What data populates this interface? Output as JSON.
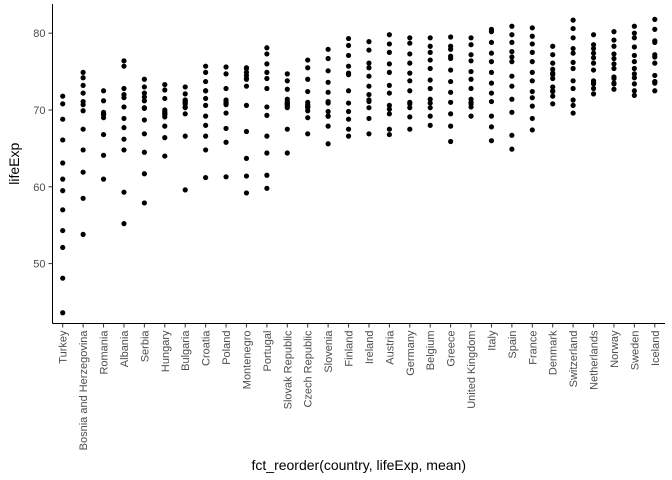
{
  "chart_data": {
    "type": "scatter",
    "title": "",
    "xlabel": "fct_reorder(country, lifeExp, mean)",
    "ylabel": "lifeExp",
    "ylim": [
      42.2,
      83.8
    ],
    "yticks": [
      50,
      60,
      70,
      80
    ],
    "grid": false,
    "point_color": "#000000",
    "categories": [
      "Turkey",
      "Bosnia and Herzegovina",
      "Romania",
      "Albania",
      "Serbia",
      "Hungary",
      "Bulgaria",
      "Croatia",
      "Poland",
      "Montenegro",
      "Portugal",
      "Slovak Republic",
      "Czech Republic",
      "Slovenia",
      "Finland",
      "Ireland",
      "Austria",
      "Germany",
      "Belgium",
      "Greece",
      "United Kingdom",
      "Italy",
      "Spain",
      "France",
      "Denmark",
      "Switzerland",
      "Netherlands",
      "Norway",
      "Sweden",
      "Iceland"
    ],
    "points": [
      [
        43.6,
        48.1,
        52.1,
        54.3,
        57.0,
        59.5,
        61.0,
        63.1,
        66.1,
        68.8,
        70.8,
        71.8
      ],
      [
        53.8,
        58.5,
        61.9,
        64.8,
        67.5,
        69.9,
        70.7,
        71.1,
        72.2,
        73.2,
        74.2,
        74.9
      ],
      [
        61.0,
        64.1,
        66.8,
        69.0,
        69.4,
        69.7,
        69.5,
        69.5,
        69.4,
        71.2,
        72.5
      ],
      [
        55.2,
        59.3,
        64.8,
        66.2,
        67.7,
        68.9,
        70.4,
        72.0,
        72.8,
        71.6,
        75.7,
        76.4
      ],
      [
        57.9,
        61.7,
        64.5,
        66.9,
        68.7,
        70.3,
        70.2,
        71.2,
        71.7,
        72.2,
        73.0,
        74.0
      ],
      [
        64.0,
        66.4,
        67.9,
        69.5,
        69.8,
        69.1,
        69.4,
        69.6,
        70.0,
        71.5,
        72.6,
        73.3
      ],
      [
        59.6,
        66.6,
        69.5,
        70.4,
        70.9,
        70.8,
        71.1,
        71.3,
        71.2,
        70.3,
        72.1,
        73.0
      ],
      [
        61.2,
        64.8,
        66.6,
        68.0,
        69.2,
        70.6,
        71.5,
        72.5,
        72.5,
        73.7,
        74.9,
        75.7
      ],
      [
        61.3,
        65.8,
        67.6,
        69.6,
        70.9,
        70.7,
        71.3,
        71.0,
        71.0,
        72.8,
        74.7,
        75.6
      ],
      [
        59.2,
        61.4,
        63.7,
        67.2,
        70.6,
        73.1,
        74.1,
        74.9,
        75.4,
        75.5,
        74.0,
        74.5
      ],
      [
        59.8,
        61.5,
        64.4,
        66.6,
        69.3,
        70.4,
        72.8,
        74.1,
        74.9,
        76.0,
        77.3,
        78.1
      ],
      [
        64.4,
        67.5,
        70.3,
        70.9,
        70.7,
        70.5,
        70.8,
        71.1,
        71.4,
        72.7,
        73.8,
        74.7
      ],
      [
        66.9,
        69.0,
        69.9,
        70.4,
        70.3,
        70.5,
        70.7,
        71.0,
        72.4,
        74.0,
        75.5,
        76.5
      ],
      [
        65.6,
        67.9,
        69.2,
        69.2,
        69.8,
        70.9,
        71.1,
        72.3,
        73.6,
        75.1,
        76.7,
        77.9
      ],
      [
        66.6,
        67.5,
        68.8,
        69.8,
        70.9,
        72.5,
        74.6,
        74.8,
        75.7,
        77.1,
        78.4,
        79.3
      ],
      [
        66.9,
        68.9,
        70.3,
        71.1,
        71.3,
        72.0,
        73.1,
        74.4,
        75.5,
        76.1,
        77.8,
        78.9
      ],
      [
        66.8,
        67.5,
        69.5,
        70.1,
        70.6,
        72.2,
        73.2,
        74.9,
        76.0,
        77.5,
        78.6,
        79.8
      ],
      [
        67.5,
        69.1,
        70.3,
        70.8,
        71.0,
        72.5,
        73.8,
        74.8,
        76.1,
        77.3,
        78.7,
        79.4
      ],
      [
        68.0,
        69.2,
        70.3,
        70.9,
        71.4,
        72.8,
        73.9,
        75.4,
        76.5,
        77.5,
        78.3,
        79.4
      ],
      [
        65.9,
        67.9,
        69.5,
        71.0,
        72.3,
        73.7,
        75.2,
        76.7,
        77.0,
        77.9,
        78.3,
        79.5
      ],
      [
        69.2,
        70.4,
        70.8,
        71.0,
        71.4,
        72.8,
        74.0,
        75.0,
        76.4,
        77.2,
        78.5,
        79.4
      ],
      [
        66.0,
        67.8,
        69.2,
        71.1,
        72.2,
        73.5,
        74.9,
        76.3,
        77.4,
        78.8,
        80.2,
        80.5
      ],
      [
        64.9,
        66.7,
        69.7,
        71.4,
        73.1,
        74.4,
        76.3,
        76.9,
        77.6,
        78.8,
        79.8,
        80.9
      ],
      [
        67.4,
        68.9,
        70.5,
        71.6,
        72.4,
        73.8,
        74.9,
        76.3,
        77.5,
        78.6,
        79.6,
        80.7
      ],
      [
        70.8,
        71.8,
        72.4,
        72.5,
        73.0,
        74.1,
        74.6,
        74.8,
        75.3,
        76.1,
        77.2,
        78.3
      ],
      [
        69.6,
        70.6,
        71.3,
        72.8,
        73.8,
        75.4,
        76.2,
        77.4,
        78.0,
        79.4,
        80.6,
        81.7
      ],
      [
        72.1,
        72.8,
        73.4,
        73.8,
        73.6,
        75.2,
        76.1,
        76.8,
        77.4,
        78.0,
        78.5,
        79.8
      ],
      [
        72.7,
        73.4,
        73.5,
        74.1,
        74.3,
        75.4,
        76.0,
        76.7,
        77.3,
        78.3,
        79.1,
        80.2
      ],
      [
        71.9,
        72.5,
        73.4,
        74.2,
        74.7,
        75.4,
        76.3,
        77.1,
        78.2,
        79.4,
        80.0,
        80.9
      ],
      [
        72.5,
        73.5,
        73.7,
        73.7,
        74.5,
        76.1,
        76.9,
        77.2,
        78.8,
        79.0,
        80.5,
        81.8
      ]
    ]
  }
}
